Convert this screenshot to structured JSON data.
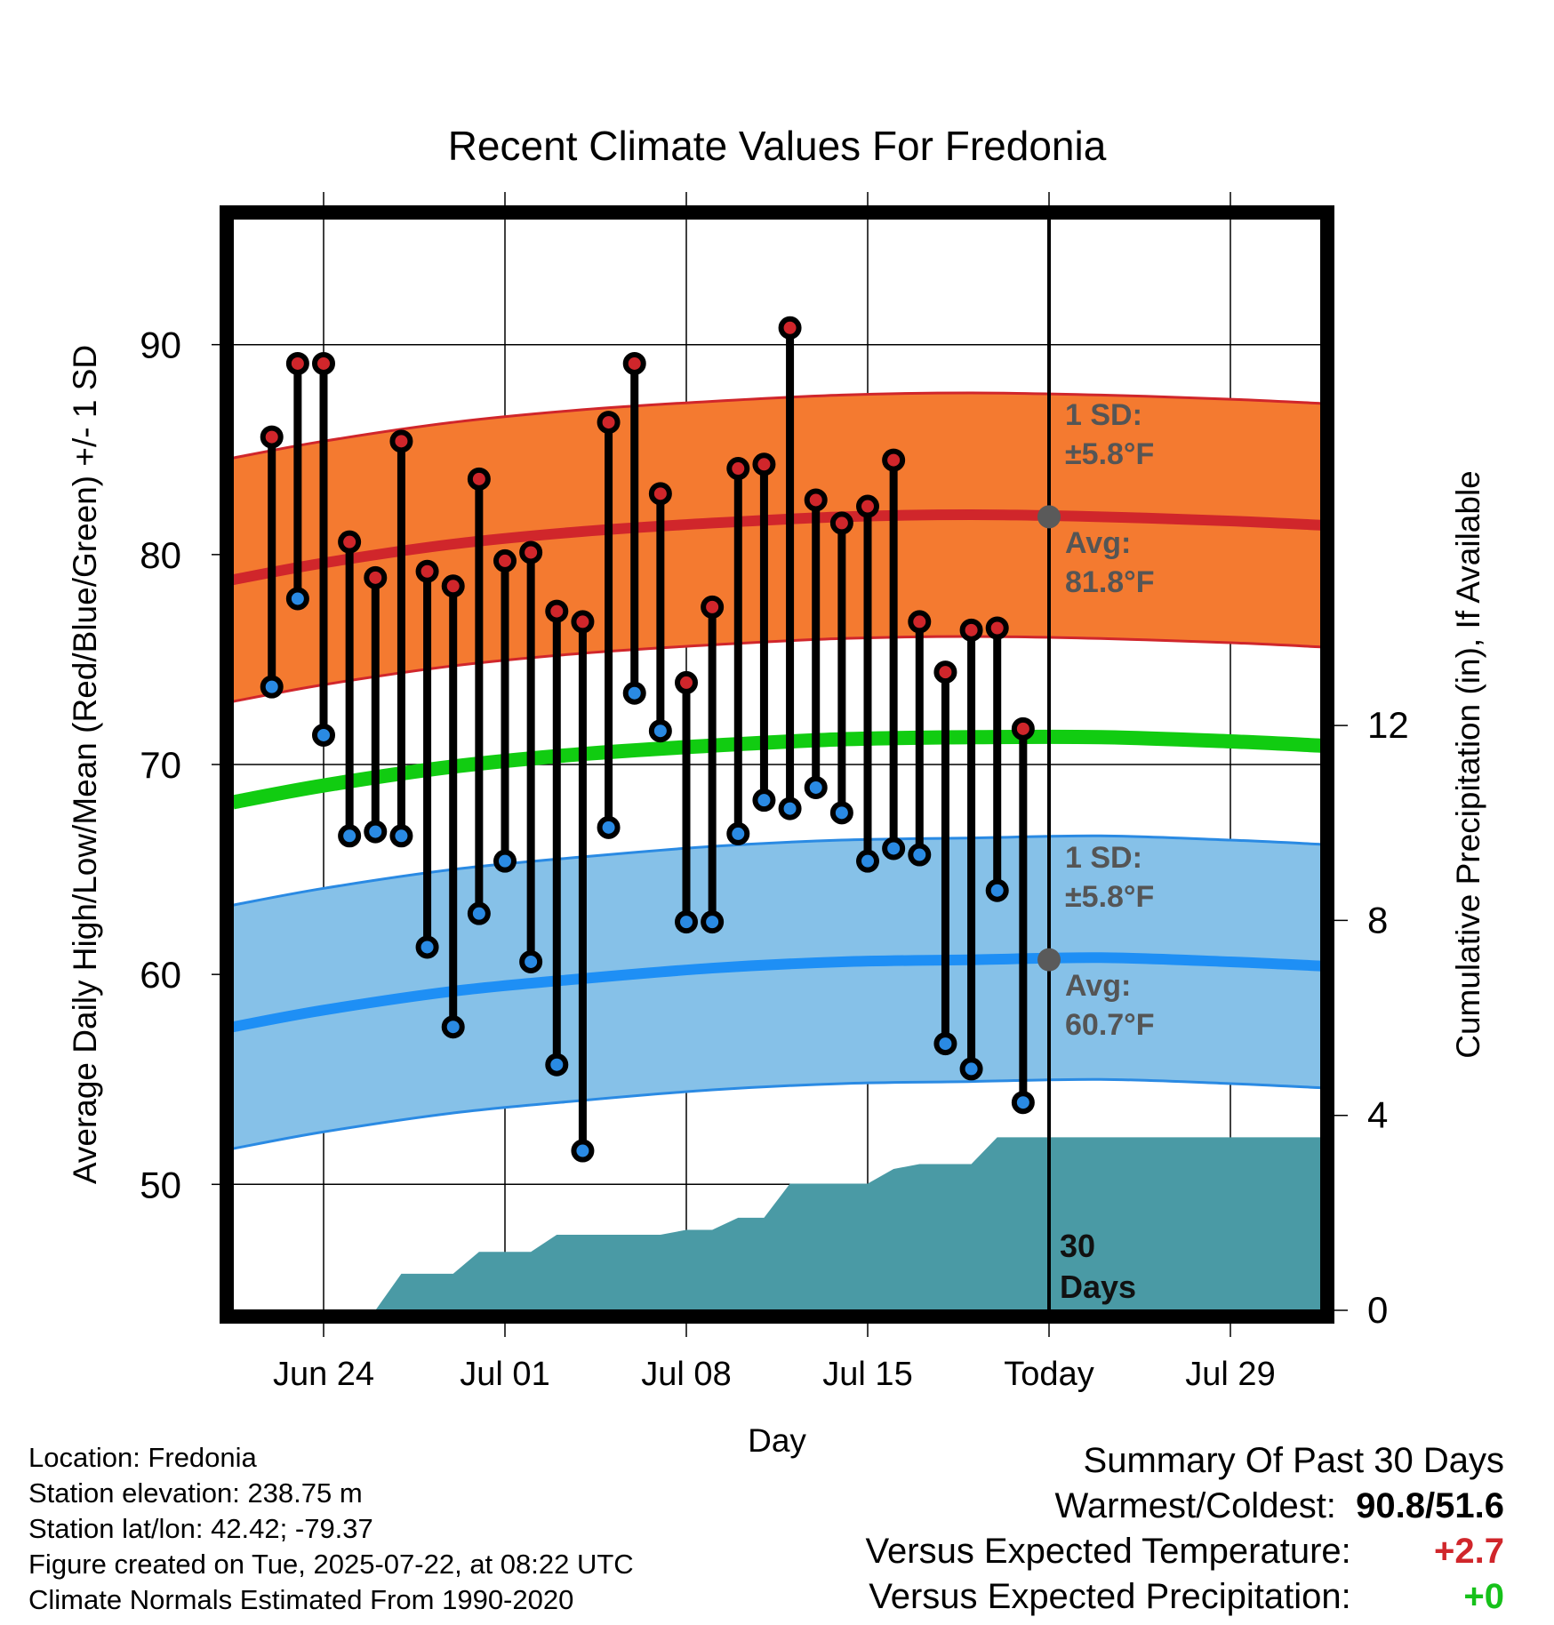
{
  "chart_data": {
    "type": "line",
    "title": "Recent Climate Values For Fredonia",
    "xlabel": "Day",
    "ylabel": "Average Daily High/Low/Mean (Red/Blue/Green) +/- 1 SD",
    "y2label": "Cumulative Precipitation (in), If Available",
    "ylim": [
      44,
      96
    ],
    "y2lim": [
      0,
      22.4
    ],
    "yticks": [
      50,
      60,
      70,
      80,
      90
    ],
    "y2ticks": [
      0,
      4,
      8,
      12
    ],
    "xlim": [
      "2025-06-20T12",
      "2025-08-01T12"
    ],
    "xticks": [
      {
        "date": "2025-06-24",
        "label": "Jun 24"
      },
      {
        "date": "2025-07-01",
        "label": "Jul 01"
      },
      {
        "date": "2025-07-08",
        "label": "Jul 08"
      },
      {
        "date": "2025-07-15",
        "label": "Jul 15"
      },
      {
        "date": "2025-07-22",
        "label": "Today"
      },
      {
        "date": "2025-07-29",
        "label": "Jul 29"
      }
    ],
    "today": "2025-07-22",
    "days": [
      "2025-06-22",
      "2025-06-23",
      "2025-06-24",
      "2025-06-25",
      "2025-06-26",
      "2025-06-27",
      "2025-06-28",
      "2025-06-29",
      "2025-06-30",
      "2025-07-01",
      "2025-07-02",
      "2025-07-03",
      "2025-07-04",
      "2025-07-05",
      "2025-07-06",
      "2025-07-07",
      "2025-07-08",
      "2025-07-09",
      "2025-07-10",
      "2025-07-11",
      "2025-07-12",
      "2025-07-13",
      "2025-07-14",
      "2025-07-15",
      "2025-07-16",
      "2025-07-17",
      "2025-07-18",
      "2025-07-19",
      "2025-07-20",
      "2025-07-21"
    ],
    "series": [
      {
        "name": "Daily High",
        "color": "#d0262b",
        "values": [
          85.6,
          89.1,
          89.1,
          80.6,
          78.9,
          85.4,
          79.2,
          78.5,
          83.6,
          79.7,
          80.1,
          77.3,
          76.8,
          86.3,
          89.1,
          82.9,
          73.9,
          77.5,
          84.1,
          84.3,
          90.8,
          82.6,
          81.5,
          82.3,
          84.5,
          76.8,
          74.4,
          76.4,
          76.5,
          71.7
        ]
      },
      {
        "name": "Daily Low",
        "color": "#2a8ae3",
        "values": [
          73.7,
          77.9,
          71.4,
          66.6,
          66.8,
          66.6,
          61.3,
          57.5,
          62.9,
          65.4,
          60.6,
          55.7,
          51.6,
          67.0,
          73.4,
          71.6,
          62.5,
          62.5,
          66.7,
          68.3,
          67.9,
          68.9,
          67.7,
          65.4,
          66.0,
          65.7,
          56.7,
          55.5,
          64.0,
          53.9
        ]
      }
    ],
    "normals": {
      "dates": [
        "2025-06-20T12",
        "2025-06-24",
        "2025-06-29",
        "2025-07-04",
        "2025-07-09",
        "2025-07-14",
        "2025-07-19",
        "2025-07-24",
        "2025-07-29",
        "2025-08-01T12"
      ],
      "avg_high": [
        78.8,
        79.6,
        80.5,
        81.1,
        81.5,
        81.8,
        81.9,
        81.8,
        81.6,
        81.4
      ],
      "avg_low": [
        57.5,
        58.3,
        59.2,
        59.8,
        60.3,
        60.6,
        60.7,
        60.8,
        60.6,
        60.4
      ],
      "avg_mean": [
        68.2,
        69.0,
        69.9,
        70.5,
        70.9,
        71.2,
        71.3,
        71.3,
        71.1,
        70.9
      ],
      "high_sd": 5.8,
      "low_sd": 5.8,
      "high_fill": "#f47a30",
      "low_fill": "#86c1e8",
      "mean_color": "#11cc11",
      "marker_color": "#5a5a5a"
    },
    "precipitation": {
      "color": "#4a9aa5",
      "dates": [
        "2025-06-26",
        "2025-06-27",
        "2025-06-29",
        "2025-06-30",
        "2025-07-02",
        "2025-07-03",
        "2025-07-07",
        "2025-07-08",
        "2025-07-09",
        "2025-07-10",
        "2025-07-11",
        "2025-07-12",
        "2025-07-15",
        "2025-07-16",
        "2025-07-17",
        "2025-07-19",
        "2025-07-20",
        "2025-08-01T12"
      ],
      "values": [
        0,
        0.75,
        0.75,
        1.2,
        1.2,
        1.55,
        1.55,
        1.65,
        1.65,
        1.9,
        1.9,
        2.6,
        2.6,
        2.9,
        3.0,
        3.0,
        3.55,
        3.55
      ]
    },
    "annotations": {
      "high_sd": [
        "1 SD:",
        "±5.8°F"
      ],
      "high_avg": [
        "Avg:",
        "81.8°F"
      ],
      "low_sd": [
        "1 SD:",
        "±5.8°F"
      ],
      "low_avg": [
        "Avg:",
        "60.7°F"
      ],
      "precip_days": [
        "30",
        "Days"
      ]
    }
  },
  "info": {
    "location": "Location: Fredonia",
    "elevation": "Station elevation: 238.75 m",
    "latlon": "Station lat/lon: 42.42; -79.37",
    "created": "Figure created on Tue, 2025-07-22, at 08:22 UTC",
    "normals": "Climate Normals Estimated From 1990-2020"
  },
  "summary": {
    "title": "Summary Of Past 30 Days",
    "extremes_label": "Warmest/Coldest:",
    "warmest": "90.8",
    "coldest": "51.6",
    "temp_label": "Versus Expected Temperature:",
    "temp_value": "+2.7",
    "precip_label": "Versus Expected Precipitation:",
    "precip_value": "+0"
  }
}
